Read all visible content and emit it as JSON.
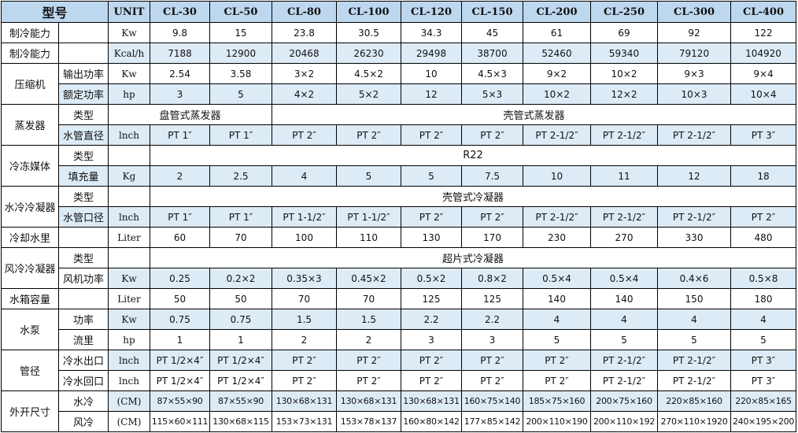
{
  "header": {
    "model": "型号",
    "unit": "UNIT",
    "models": [
      "CL-30",
      "CL-50",
      "CL-80",
      "CL-100",
      "CL-120",
      "CL-150",
      "CL-200",
      "CL-250",
      "CL-300",
      "CL-400"
    ]
  },
  "rows": [
    {
      "group": "制冷能力",
      "item": "",
      "unit": "Kw",
      "values": [
        "9.8",
        "15",
        "23.8",
        "30.5",
        "34.3",
        "45",
        "61",
        "69",
        "92",
        "122"
      ]
    },
    {
      "group": "制冷能力",
      "item": "",
      "unit": "Kcal/h",
      "values": [
        "7188",
        "12900",
        "20468",
        "26230",
        "29498",
        "38700",
        "52460",
        "59340",
        "79120",
        "104920"
      ]
    },
    {
      "group": "压缩机",
      "item": "输出功率",
      "unit": "Kw",
      "values": [
        "2.54",
        "3.58",
        "3×2",
        "4.5×2",
        "10",
        "4.5×3",
        "9×2",
        "10×2",
        "9×3",
        "9×4"
      ]
    },
    {
      "group": "",
      "item": "额定功率",
      "unit": "hp",
      "values": [
        "3",
        "5",
        "4×2",
        "5×2",
        "12",
        "5×3",
        "10×2",
        "12×2",
        "10×3",
        "10×4"
      ]
    },
    {
      "group": "蒸发器",
      "item": "类型",
      "unit": "",
      "values": [
        "盘管式蒸发器",
        "壳管式蒸发器"
      ]
    },
    {
      "group": "",
      "item": "水管直径",
      "unit": "lnch",
      "values": [
        "PT 1″",
        "PT 1″",
        "PT 2″",
        "PT 2″",
        "PT 2″",
        "PT 2″",
        "PT 2-1/2″",
        "PT 2-1/2″",
        "PT 2-1/2″",
        "PT 3″"
      ]
    },
    {
      "group": "冷冻媒体",
      "item": "类型",
      "unit": "",
      "values": [
        "R22"
      ]
    },
    {
      "group": "",
      "item": "填充量",
      "unit": "Kg",
      "values": [
        "2",
        "2.5",
        "4",
        "5",
        "5",
        "7.5",
        "10",
        "11",
        "12",
        "18"
      ]
    },
    {
      "group": "水冷冷凝器",
      "item": "类型",
      "unit": "",
      "values": [
        "壳管式冷凝器"
      ]
    },
    {
      "group": "",
      "item": "水管口径",
      "unit": "lnch",
      "values": [
        "PT 1″",
        "PT 1″",
        "PT 1-1/2″",
        "PT 1-1/2″",
        "PT 2″",
        "PT 2″",
        "PT 2-1/2″",
        "PT 2-1/2″",
        "PT 2-1/2″",
        "PT 2″"
      ]
    },
    {
      "group": "冷却水里",
      "item": "",
      "unit": "Liter",
      "values": [
        "60",
        "70",
        "100",
        "110",
        "130",
        "170",
        "230",
        "270",
        "330",
        "480"
      ]
    },
    {
      "group": "风冷冷凝器",
      "item": "类型",
      "unit": "",
      "values": [
        "超片式冷凝器"
      ]
    },
    {
      "group": "",
      "item": "风机功率",
      "unit": "Kw",
      "values": [
        "0.25",
        "0.2×2",
        "0.35×3",
        "0.45×2",
        "0.5×2",
        "0.8×2",
        "0.5×4",
        "0.5×4",
        "0.4×6",
        "0.5×8"
      ]
    },
    {
      "group": "水箱容量",
      "item": "",
      "unit": "Liter",
      "values": [
        "50",
        "50",
        "70",
        "70",
        "125",
        "125",
        "140",
        "140",
        "150",
        "180"
      ]
    },
    {
      "group": "水泵",
      "item": "功率",
      "unit": "Kw",
      "values": [
        "0.75",
        "0.75",
        "1.5",
        "1.5",
        "2.2",
        "2.2",
        "4",
        "4",
        "4",
        "4"
      ]
    },
    {
      "group": "",
      "item": "流里",
      "unit": "hp",
      "values": [
        "1",
        "1",
        "2",
        "2",
        "3",
        "3",
        "5",
        "5",
        "5",
        "5"
      ]
    },
    {
      "group": "管径",
      "item": "冷水出口",
      "unit": "lnch",
      "values": [
        "PT 1/2×4″",
        "PT 1/2×4″",
        "PT 2″",
        "PT 2″",
        "PT 2″",
        "PT 2″",
        "PT 2″",
        "PT 2-1/2″",
        "PT 2-1/2″",
        "PT 3″"
      ]
    },
    {
      "group": "",
      "item": "冷水回口",
      "unit": "lnch",
      "values": [
        "PT 1/2×4″",
        "PT 1/2×4″",
        "PT 2″",
        "PT 2″",
        "PT 2″",
        "PT 2″",
        "PT 2″",
        "PT 2-1/2″",
        "PT 2-1/2″",
        "PT 3″"
      ]
    },
    {
      "group": "外开尺寸",
      "item": "水冷",
      "unit": "(CM)",
      "values": [
        "87×55×90",
        "87×55×90",
        "130×68×131",
        "130×68×131",
        "130×68×131",
        "160×75×140",
        "185×75×160",
        "200×75×160",
        "220×85×160",
        "220×85×165"
      ]
    },
    {
      "group": "",
      "item": "风冷",
      "unit": "(CM)",
      "values": [
        "115×60×111",
        "130×68×115",
        "153×73×131",
        "153×78×137",
        "160×80×142",
        "177×85×142",
        "200×110×190",
        "200×110×192",
        "270×110×1920",
        "240×195×200"
      ]
    }
  ],
  "colors": {
    "header_bg": "#bdd7ee",
    "row_blue": "#ddebf7",
    "border": "#000000"
  }
}
